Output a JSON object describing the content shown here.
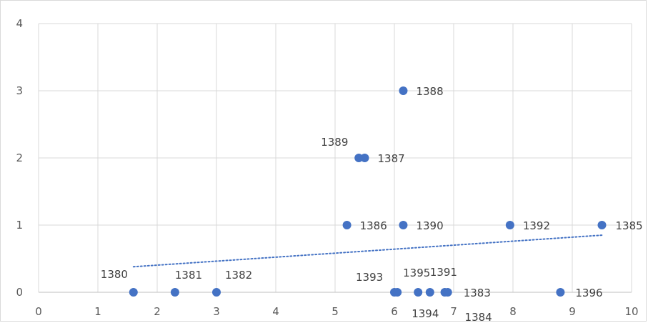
{
  "chart_data": {
    "type": "scatter",
    "title": "",
    "xlabel": "",
    "ylabel": "",
    "xlim": [
      0,
      10
    ],
    "ylim": [
      0,
      4
    ],
    "x_ticks": [
      "0",
      "1",
      "2",
      "3",
      "4",
      "5",
      "6",
      "7",
      "8",
      "9",
      "10"
    ],
    "y_ticks": [
      "0",
      "1",
      "2",
      "3",
      "4"
    ],
    "grid": true,
    "legend": "none",
    "colors": {
      "marker": "#4472c4",
      "trendline": "#4472c4",
      "grid": "#d9d9d9",
      "axis": "#bfbfbf"
    },
    "points": [
      {
        "label": "1380",
        "x": 1.6,
        "y": 0
      },
      {
        "label": "1381",
        "x": 2.3,
        "y": 0
      },
      {
        "label": "1382",
        "x": 3.0,
        "y": 0
      },
      {
        "label": "1383",
        "x": 6.9,
        "y": 0
      },
      {
        "label": "1384",
        "x": 6.85,
        "y": 0
      },
      {
        "label": "1385",
        "x": 9.5,
        "y": 1
      },
      {
        "label": "1386",
        "x": 5.2,
        "y": 1
      },
      {
        "label": "1387",
        "x": 5.5,
        "y": 2
      },
      {
        "label": "1388",
        "x": 6.15,
        "y": 3
      },
      {
        "label": "1389",
        "x": 5.4,
        "y": 2
      },
      {
        "label": "1390",
        "x": 6.15,
        "y": 1
      },
      {
        "label": "1391",
        "x": 6.6,
        "y": 0
      },
      {
        "label": "1392",
        "x": 7.95,
        "y": 1
      },
      {
        "label": "1393",
        "x": 6.0,
        "y": 0
      },
      {
        "label": "1394",
        "x": 6.4,
        "y": 0
      },
      {
        "label": "1395",
        "x": 6.05,
        "y": 0
      },
      {
        "label": "1396",
        "x": 8.8,
        "y": 0
      }
    ],
    "trendline": {
      "style": "dotted",
      "type": "linear",
      "start": {
        "x": 1.6,
        "y": 0.38
      },
      "end": {
        "x": 9.5,
        "y": 0.85
      }
    }
  }
}
